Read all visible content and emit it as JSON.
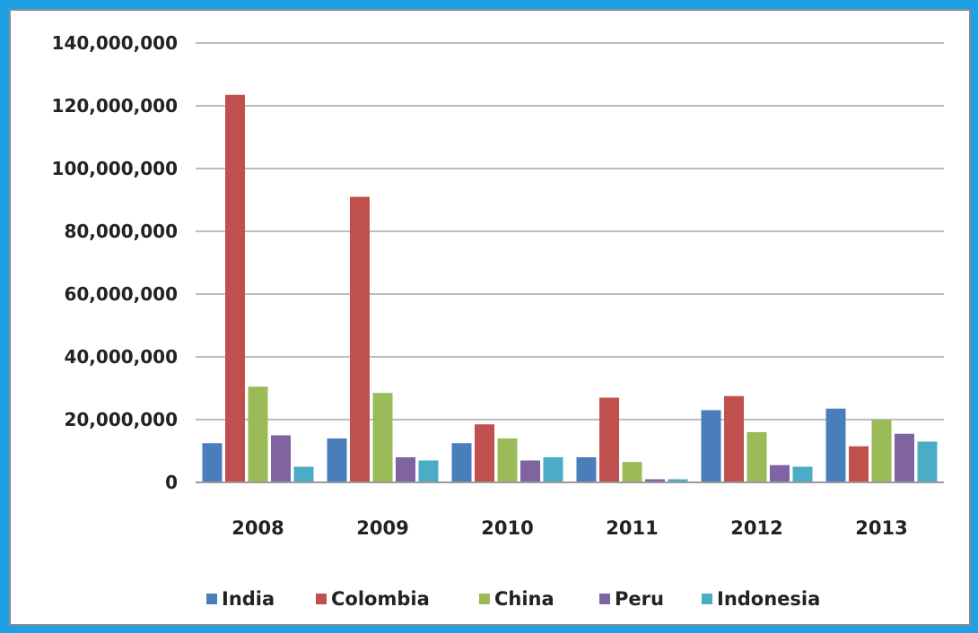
{
  "chart_data": {
    "type": "bar",
    "categories": [
      "2008",
      "2009",
      "2010",
      "2011",
      "2012",
      "2013"
    ],
    "series": [
      {
        "name": "India",
        "color": "#4a7ebb",
        "values": [
          12500000,
          14000000,
          12500000,
          8000000,
          23000000,
          23500000
        ]
      },
      {
        "name": "Colombia",
        "color": "#c0504d",
        "values": [
          123500000,
          91000000,
          18500000,
          27000000,
          27500000,
          11500000
        ]
      },
      {
        "name": "China",
        "color": "#9bbb59",
        "values": [
          30500000,
          28500000,
          14000000,
          6500000,
          16000000,
          20000000
        ]
      },
      {
        "name": "Peru",
        "color": "#8064a2",
        "values": [
          15000000,
          8000000,
          7000000,
          1000000,
          5500000,
          15500000
        ]
      },
      {
        "name": "Indonesia",
        "color": "#4bacc6",
        "values": [
          5000000,
          7000000,
          8000000,
          1000000,
          5000000,
          13000000
        ]
      }
    ],
    "ylim": [
      0,
      140000000
    ],
    "yticks": [
      {
        "value": 0,
        "label": "0"
      },
      {
        "value": 20000000,
        "label": "20,000,000"
      },
      {
        "value": 40000000,
        "label": "40,000,000"
      },
      {
        "value": 60000000,
        "label": "60,000,000"
      },
      {
        "value": 80000000,
        "label": "80,000,000"
      },
      {
        "value": 100000000,
        "label": "100,000,000"
      },
      {
        "value": 120000000,
        "label": "120,000,000"
      },
      {
        "value": 140000000,
        "label": "140,000,000"
      }
    ],
    "grid": true,
    "legend_position": "bottom",
    "title": "",
    "xlabel": "",
    "ylabel": ""
  }
}
